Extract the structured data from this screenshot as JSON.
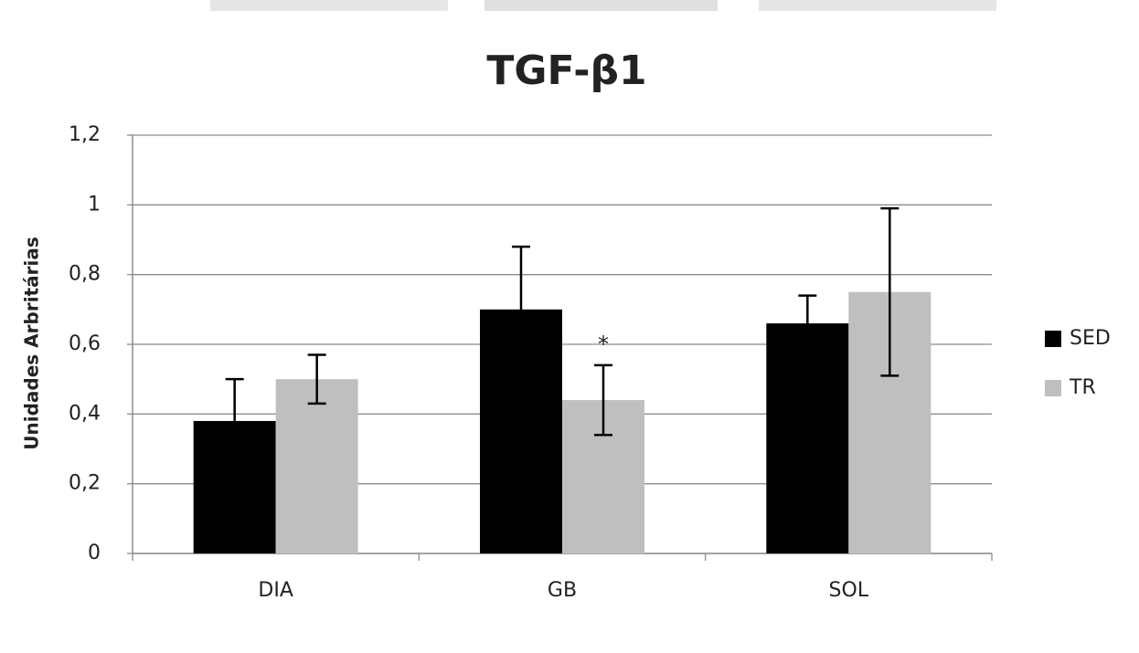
{
  "chart_data": {
    "type": "bar",
    "title": "TGF-β1",
    "y_label": "Unidades Arbritárias",
    "categories": [
      "DIA",
      "GB",
      "SOL"
    ],
    "series": [
      {
        "name": "SED",
        "color": "#000000",
        "values": [
          0.38,
          0.7,
          0.66
        ],
        "errors": [
          0.12,
          0.18,
          0.08
        ]
      },
      {
        "name": "TR",
        "color": "#bfbfbf",
        "values": [
          0.5,
          0.44,
          0.75
        ],
        "errors": [
          0.07,
          0.1,
          0.24
        ]
      }
    ],
    "annotation": "*",
    "ylim": [
      0,
      1.2
    ],
    "yticks": [
      0,
      {
        "value": 0.2,
        "label": "0,2"
      },
      {
        "value": 0.4,
        "label": "0,4"
      },
      {
        "value": 0.6,
        "label": "0,6"
      },
      {
        "value": 0.8,
        "label": "0,8"
      },
      1,
      {
        "value": 1.2,
        "label": "1,2"
      }
    ],
    "grid": true,
    "legend": "right"
  }
}
